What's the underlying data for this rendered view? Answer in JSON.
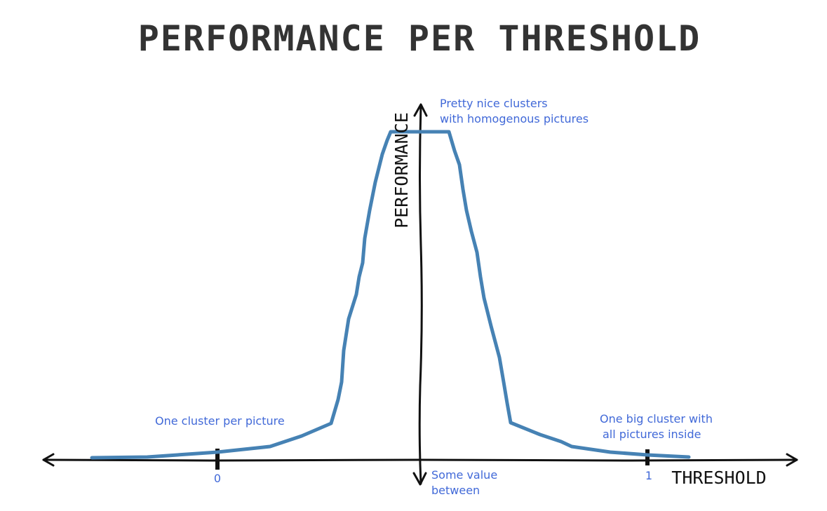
{
  "title": "PERFORMANCE PER THRESHOLD",
  "axes": {
    "x_label": "THRESHOLD",
    "y_label": "PERFORMANCE"
  },
  "ticks": {
    "left": "0",
    "right": "1"
  },
  "annotations": {
    "peak_line1": "Pretty nice clusters",
    "peak_line2": "with homogenous pictures",
    "left": "One cluster per picture",
    "right_line1": "One big cluster with",
    "right_line2": "all pictures inside",
    "middle_line1": "Some value",
    "middle_line2": "between"
  },
  "colors": {
    "curve": "#4682b4",
    "axis": "#111111",
    "annotation": "#4169d8",
    "title": "#333333"
  }
}
